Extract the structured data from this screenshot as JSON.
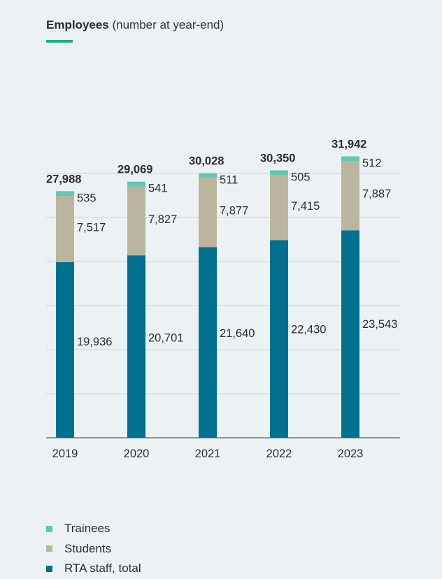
{
  "title": {
    "bold": "Employees",
    "rest": " (number at year-end)"
  },
  "chart_data": {
    "type": "bar",
    "stacked": true,
    "categories": [
      "2019",
      "2020",
      "2021",
      "2022",
      "2023"
    ],
    "series": [
      {
        "name": "RTA staff, total",
        "values": [
          19936,
          20701,
          21640,
          22430,
          23543
        ],
        "color": "#00708f"
      },
      {
        "name": "Students",
        "values": [
          7517,
          7827,
          7877,
          7415,
          7887
        ],
        "color": "#bbb5a0"
      },
      {
        "name": "Trainees",
        "values": [
          535,
          541,
          511,
          505,
          512
        ],
        "color": "#5fc9b1"
      }
    ],
    "value_labels": {
      "RTA staff, total": [
        "19,936",
        "20,701",
        "21,640",
        "22,430",
        "23,543"
      ],
      "Students": [
        "7,517",
        "7,827",
        "7,877",
        "7,415",
        "7,887"
      ],
      "Trainees": [
        "535",
        "541",
        "511",
        "505",
        "512"
      ]
    },
    "totals": [
      27988,
      29069,
      30028,
      30350,
      31942
    ],
    "total_labels": [
      "27,988",
      "29,069",
      "30,028",
      "30,350",
      "31,942"
    ],
    "ylim": [
      0,
      40000
    ],
    "grid": true,
    "legend_position": "bottom-left",
    "legend_order": [
      "Trainees",
      "Students",
      "RTA staff, total"
    ]
  }
}
